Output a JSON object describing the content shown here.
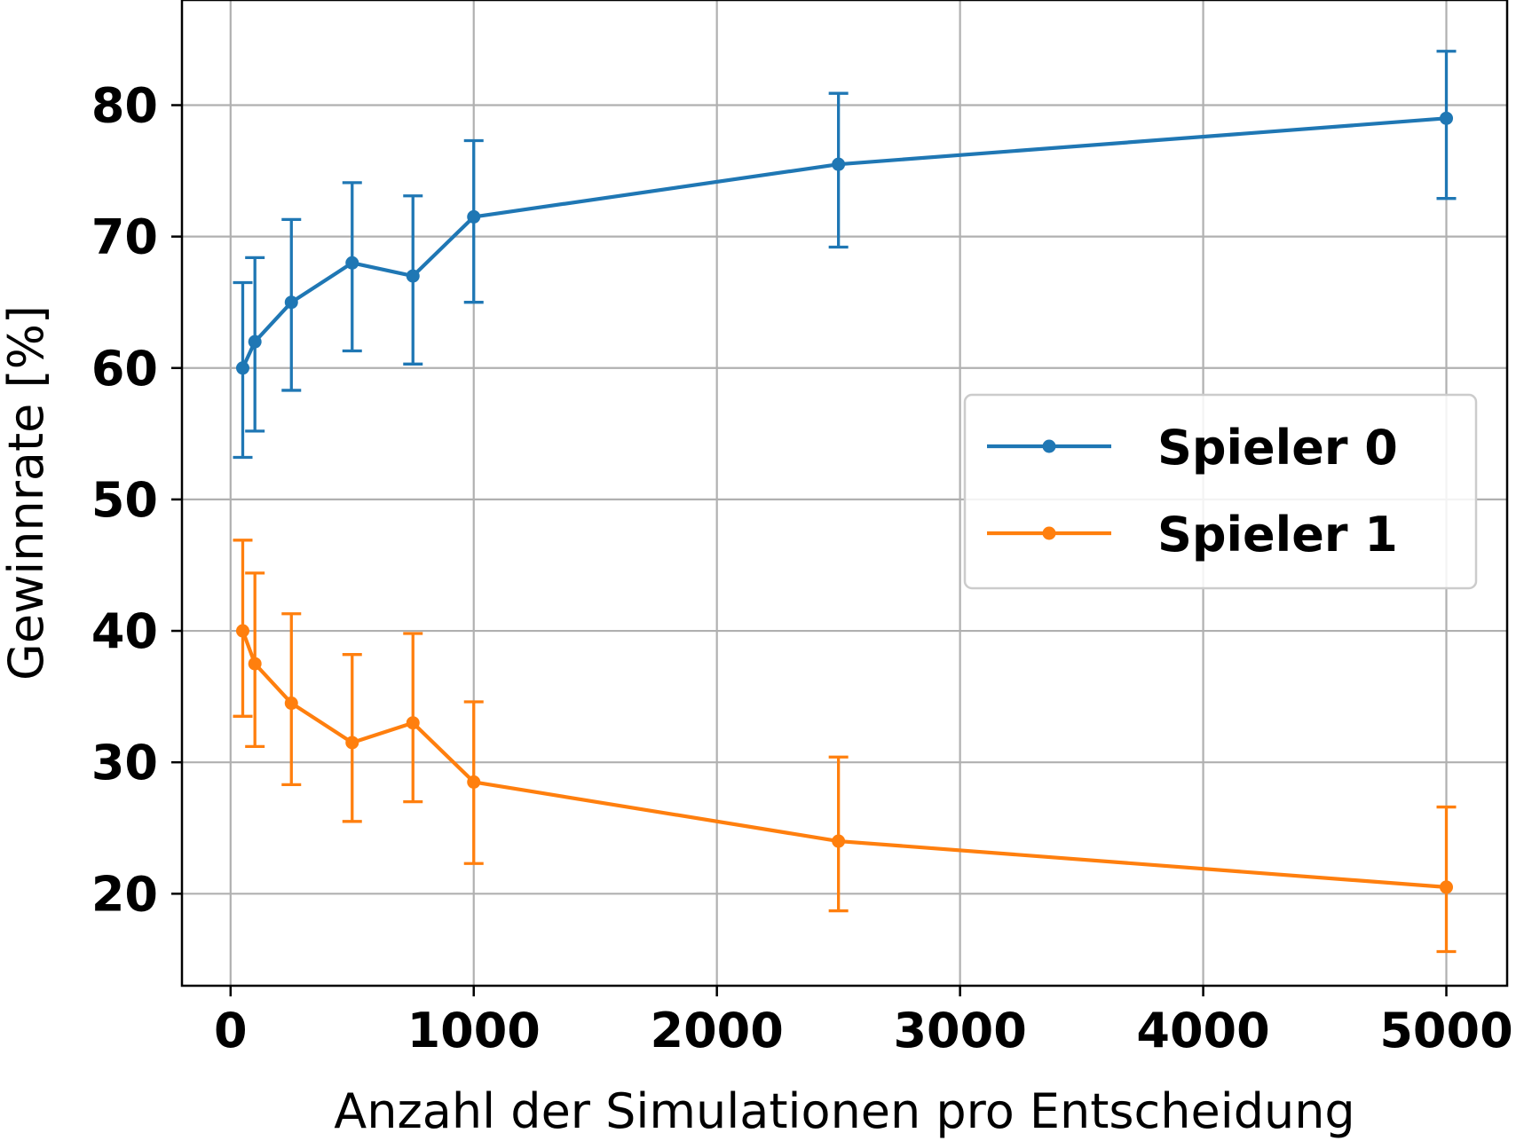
{
  "chart_data": {
    "type": "line",
    "title": "",
    "xlabel": "Anzahl der Simulationen pro Entscheidung",
    "ylabel": "Gewinnrate [%]",
    "xlim": [
      -200,
      5250
    ],
    "ylim": [
      13,
      88
    ],
    "xticks": [
      0,
      1000,
      2000,
      3000,
      4000,
      5000
    ],
    "yticks": [
      20,
      30,
      40,
      50,
      60,
      70,
      80
    ],
    "grid": true,
    "legend_position": "center-right",
    "x": [
      50,
      100,
      250,
      500,
      750,
      1000,
      2500,
      5000
    ],
    "series": [
      {
        "name": "Spieler 0",
        "color": "#1f77b4",
        "values": [
          60,
          62,
          65,
          68,
          67,
          71.5,
          75.5,
          79
        ],
        "error_low": [
          53.2,
          55.2,
          58.3,
          61.3,
          60.3,
          65,
          69.2,
          72.9
        ],
        "error_high": [
          66.5,
          68.4,
          71.3,
          74.1,
          73.1,
          77.3,
          80.9,
          84.1
        ]
      },
      {
        "name": "Spieler 1",
        "color": "#ff7f0e",
        "values": [
          40,
          37.5,
          34.5,
          31.5,
          33,
          28.5,
          24,
          20.5
        ],
        "error_low": [
          33.5,
          31.2,
          28.3,
          25.5,
          27,
          22.3,
          18.7,
          15.6
        ],
        "error_high": [
          46.9,
          44.4,
          41.3,
          38.2,
          39.8,
          34.6,
          30.4,
          26.6
        ]
      }
    ]
  }
}
